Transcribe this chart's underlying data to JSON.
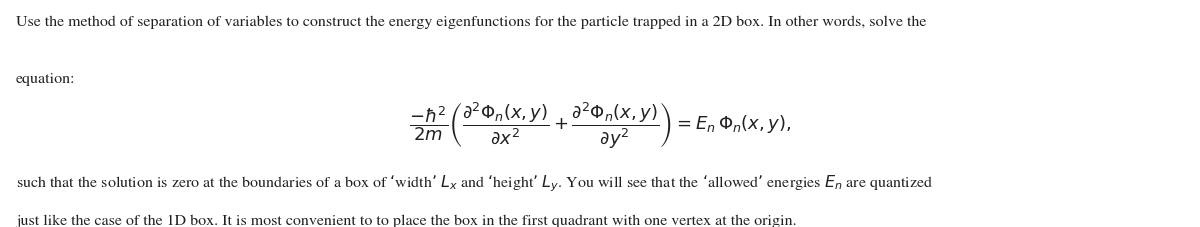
{
  "background_color": "#ffffff",
  "figsize": [
    12.0,
    2.28
  ],
  "dpi": 100,
  "text_color": "#231f20",
  "font_size": 11.5,
  "eq_font_size": 13.0,
  "line1": "Use the method of separation of variables to construct the energy eigenfunctions for the particle trapped in a 2D box. In other words, solve the",
  "line2": "equation:",
  "equation": "\\dfrac{-\\hbar^2}{2m}\\left(\\dfrac{\\partial^2 \\Phi_n(x, y)}{\\partial x^2} + \\dfrac{\\partial^2 \\Phi_n(x, y)}{\\partial y^2}\\right) = E_n\\,\\Phi_n(x, y),",
  "line3a": "such that the solution is zero at the boundaries of a box of ‘width’ $L_x$ and ‘height’ $L_y$. You will see that the ‘allowed’ energies $E_n$ are quantized",
  "line3b": "just like the case of the 1D box. It is most convenient to to place the box in the first quadrant with one vertex at the origin."
}
